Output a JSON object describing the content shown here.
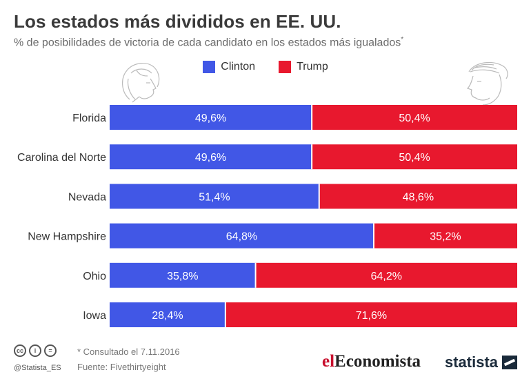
{
  "header": {
    "title": "Los estados más divididos en EE. UU.",
    "subtitle": "% de posibilidades de victoria de cada candidato en los estados más igualados",
    "subtitle_mark": "*"
  },
  "legend": {
    "clinton": "Clinton",
    "trump": "Trump"
  },
  "colors": {
    "clinton": "#4157e6",
    "trump": "#e8182e"
  },
  "chart_data": {
    "type": "bar",
    "orientation": "horizontal",
    "stacked": true,
    "categories": [
      "Florida",
      "Carolina del Norte",
      "Nevada",
      "New Hampshire",
      "Ohio",
      "Iowa"
    ],
    "series": [
      {
        "name": "Clinton",
        "values": [
          49.6,
          49.6,
          51.4,
          64.8,
          35.8,
          28.4
        ],
        "labels": [
          "49,6%",
          "49,6%",
          "51,4%",
          "64,8%",
          "35,8%",
          "28,4%"
        ]
      },
      {
        "name": "Trump",
        "values": [
          50.4,
          50.4,
          48.6,
          35.2,
          64.2,
          71.6
        ],
        "labels": [
          "50,4%",
          "50,4%",
          "48,6%",
          "35,2%",
          "64,2%",
          "71,6%"
        ]
      }
    ],
    "xlim": [
      0,
      100
    ],
    "legend_position": "top-center"
  },
  "footer": {
    "note": "* Consultado el 7.11.2016",
    "source": "Fuente: Fivethirtyeight",
    "handle": "@Statista_ES",
    "cc_icons": [
      "cc",
      "i",
      "="
    ]
  },
  "brands": {
    "el": "el",
    "economista": "Economista",
    "statista": "statista"
  }
}
